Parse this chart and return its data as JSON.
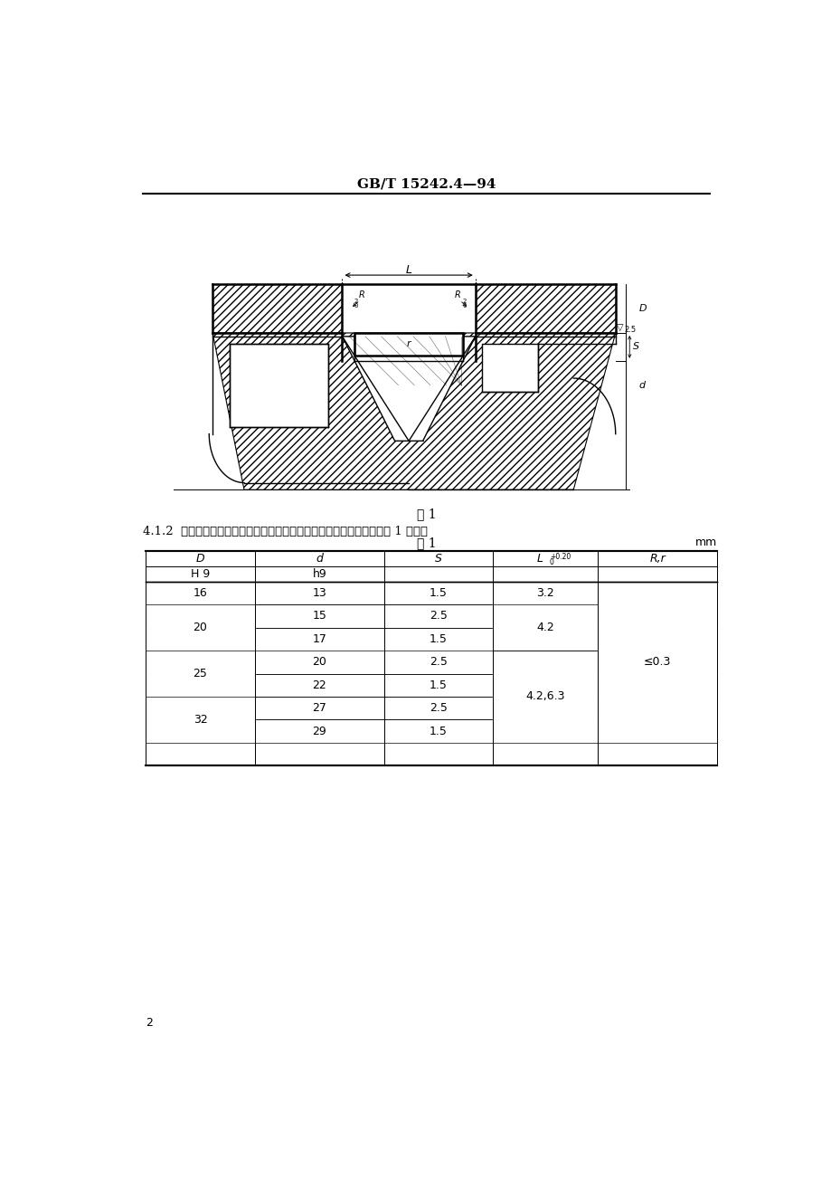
{
  "header_text": "GB/T 15242.4—94",
  "figure_caption": "图 1",
  "section_text": "4.1.2  液压缸活塞动密封装置用支承环安装沟槽尺寸系列和公差应符合表 1 规定。",
  "table_title": "表 1",
  "table_unit": "mm",
  "page_number": "2",
  "bg_color": "#ffffff"
}
